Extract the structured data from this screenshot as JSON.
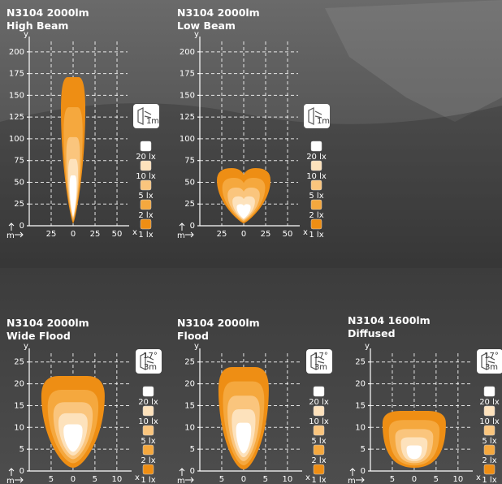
{
  "panels": [
    {
      "title": "N3104 2000lm",
      "subtitle": "High Beam",
      "icon_labels": [
        "1m"
      ],
      "x_label": "x",
      "y_label": "y",
      "unit_label": "m",
      "xlim": [
        -50,
        62
      ],
      "ylim": [
        0,
        212
      ],
      "xticks": [
        {
          "value": -25,
          "label": "25"
        },
        0,
        25,
        50
      ],
      "yticks": [
        0,
        25,
        50,
        75,
        100,
        125,
        150,
        175,
        200
      ],
      "legend": [
        {
          "label": "20 lx",
          "color": "#ffffff"
        },
        {
          "label": "10 lx",
          "color": "#fde2bc"
        },
        {
          "label": "5 lx",
          "color": "#fac57d"
        },
        {
          "label": "2 lx",
          "color": "#f5a83e"
        },
        {
          "label": "1 lx",
          "color": "#ee8e14"
        }
      ]
    },
    {
      "title": "N3104 2000lm",
      "subtitle": "Low Beam",
      "icon_labels": [
        "1m"
      ],
      "x_label": "x",
      "y_label": "y",
      "unit_label": "m",
      "xlim": [
        -50,
        62
      ],
      "ylim": [
        0,
        212
      ],
      "xticks": [
        {
          "value": -25,
          "label": "25"
        },
        0,
        25,
        50
      ],
      "yticks": [
        0,
        25,
        50,
        75,
        100,
        125,
        150,
        175,
        200
      ],
      "legend": [
        {
          "label": "20 lx",
          "color": "#ffffff"
        },
        {
          "label": "10 lx",
          "color": "#fde2bc"
        },
        {
          "label": "5 lx",
          "color": "#fac57d"
        },
        {
          "label": "2 lx",
          "color": "#f5a83e"
        },
        {
          "label": "1 lx",
          "color": "#ee8e14"
        }
      ]
    },
    {
      "title": "N3104 2000lm",
      "subtitle": "Wide Flood",
      "icon_labels": [
        "17°",
        "3m"
      ],
      "x_label": "x",
      "y_label": "y",
      "unit_label": "m",
      "xlim": [
        -10,
        13
      ],
      "ylim": [
        0,
        27
      ],
      "xticks": [
        {
          "value": -5,
          "label": "5"
        },
        0,
        5,
        10
      ],
      "yticks": [
        0,
        5,
        10,
        15,
        20,
        25
      ],
      "legend": [
        {
          "label": "20 lx",
          "color": "#ffffff"
        },
        {
          "label": "10 lx",
          "color": "#fde2bc"
        },
        {
          "label": "5 lx",
          "color": "#fac57d"
        },
        {
          "label": "2 lx",
          "color": "#f5a83e"
        },
        {
          "label": "1 lx",
          "color": "#ee8e14"
        }
      ]
    },
    {
      "title": "N3104 2000lm",
      "subtitle": "Flood",
      "icon_labels": [
        "17°",
        "3m"
      ],
      "x_label": "x",
      "y_label": "y",
      "unit_label": "m",
      "xlim": [
        -10,
        13
      ],
      "ylim": [
        0,
        27
      ],
      "xticks": [
        {
          "value": -5,
          "label": "5"
        },
        0,
        5,
        10
      ],
      "yticks": [
        0,
        5,
        10,
        15,
        20,
        25
      ],
      "legend": [
        {
          "label": "20 lx",
          "color": "#ffffff"
        },
        {
          "label": "10 lx",
          "color": "#fde2bc"
        },
        {
          "label": "5 lx",
          "color": "#fac57d"
        },
        {
          "label": "2 lx",
          "color": "#f5a83e"
        },
        {
          "label": "1 lx",
          "color": "#ee8e14"
        }
      ]
    },
    {
      "title": "N3104 1600lm",
      "subtitle": "Diffused",
      "icon_labels": [
        "17°",
        "3m"
      ],
      "x_label": "x",
      "y_label": "y",
      "unit_label": "m",
      "xlim": [
        -10,
        13
      ],
      "ylim": [
        0,
        27
      ],
      "xticks": [
        {
          "value": -5,
          "label": "5"
        },
        0,
        5,
        10
      ],
      "yticks": [
        0,
        5,
        10,
        15,
        20,
        25
      ],
      "legend": [
        {
          "label": "20 lx",
          "color": "#ffffff"
        },
        {
          "label": "10 lx",
          "color": "#fde2bc"
        },
        {
          "label": "5 lx",
          "color": "#fac57d"
        },
        {
          "label": "2 lx",
          "color": "#f5a83e"
        },
        {
          "label": "1 lx",
          "color": "#ee8e14"
        }
      ]
    }
  ]
}
